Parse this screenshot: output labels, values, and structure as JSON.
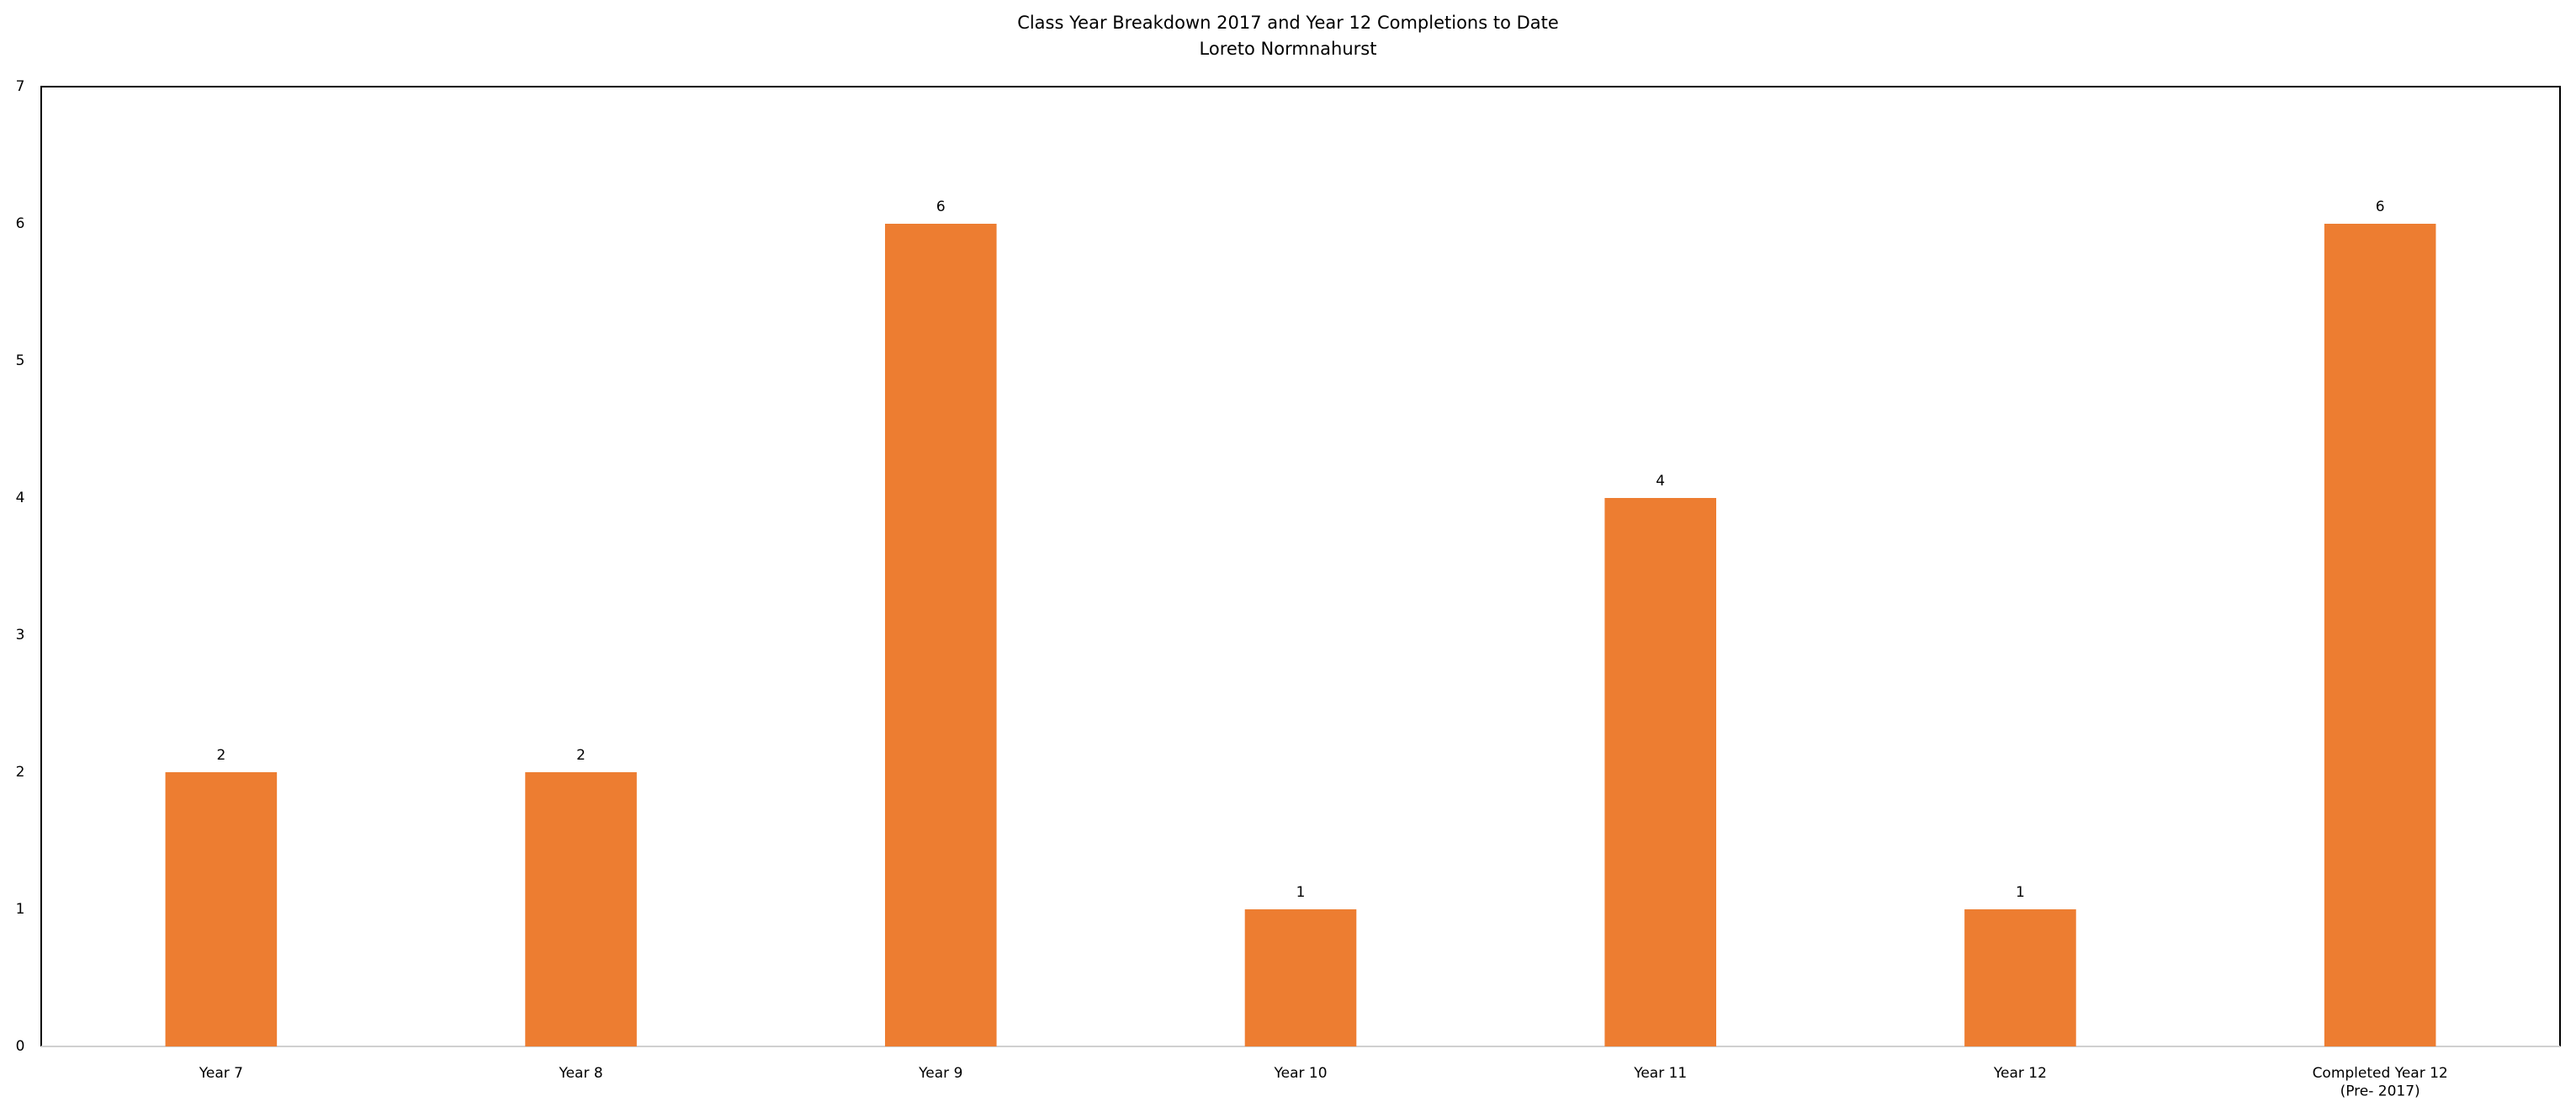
{
  "chart_data": {
    "type": "bar",
    "title": "Class Year Breakdown 2017 and Year 12 Completions to Date",
    "subtitle": "Loreto Normnahurst",
    "categories": [
      "Year 7",
      "Year 8",
      "Year 9",
      "Year 10",
      "Year 11",
      "Year 12",
      "Completed Year 12\n(Pre- 2017)"
    ],
    "values": [
      2,
      2,
      6,
      1,
      4,
      1,
      6
    ],
    "color": "#ed7d31",
    "ylim": [
      0,
      7
    ],
    "yticks": [
      0,
      1,
      2,
      3,
      4,
      5,
      6,
      7
    ],
    "grid": false
  }
}
